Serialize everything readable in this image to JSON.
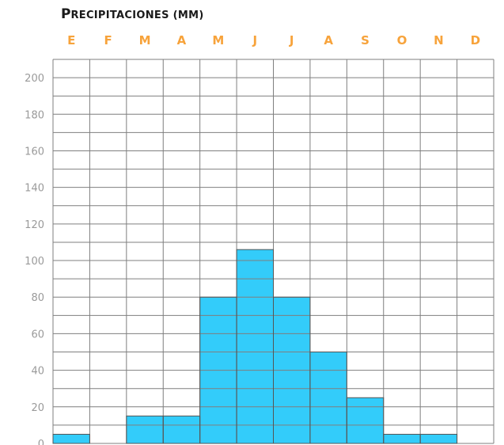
{
  "title": "Precipitaciones (mm)",
  "chart_data": {
    "type": "bar",
    "title": "Precipitaciones (mm)",
    "categories": [
      "E",
      "F",
      "M",
      "A",
      "M",
      "J",
      "J",
      "A",
      "S",
      "O",
      "N",
      "D"
    ],
    "values": [
      5,
      0,
      15,
      15,
      80,
      106,
      80,
      50,
      25,
      5,
      5,
      0
    ],
    "ylim": [
      0,
      210
    ],
    "yticks": [
      0,
      20,
      40,
      60,
      80,
      100,
      120,
      140,
      160,
      180,
      200
    ],
    "grid": true,
    "colors": {
      "bar": "#33ccfa",
      "month_label": "#f7a33b",
      "grid": "#7f7f7f",
      "tick_label": "#9a9a9a"
    }
  }
}
